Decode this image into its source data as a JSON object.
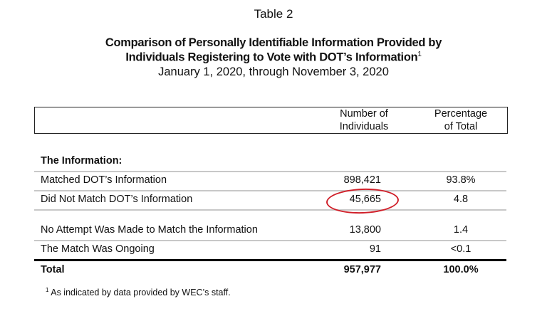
{
  "table_label": "Table 2",
  "title_line1": "Comparison of Personally Identifiable Information Provided by",
  "title_line2": "Individuals Registering to Vote with DOT’s Information",
  "title_footnote_mark": "1",
  "date_range": "January 1, 2020, through November 3, 2020",
  "columns": {
    "number": [
      "Number of",
      "Individuals"
    ],
    "percentage": [
      "Percentage",
      "of Total"
    ]
  },
  "section_heading": "The Information:",
  "rows": [
    {
      "label": "Matched DOT’s Information",
      "number": "898,421",
      "percentage": "93.8%"
    },
    {
      "label": "Did Not Match DOT’s Information",
      "number": "45,665",
      "percentage": "4.8"
    },
    {
      "label": "No Attempt Was Made to Match the Information",
      "number": "13,800",
      "percentage": "1.4"
    },
    {
      "label": "The Match Was Ongoing",
      "number": "91",
      "percentage": "<0.1"
    }
  ],
  "total": {
    "label": "Total",
    "number": "957,977",
    "percentage": "100.0%"
  },
  "footnote": {
    "mark": "1",
    "text": "As indicated by data provided by WEC’s staff."
  },
  "highlight_color": "#d0202a"
}
